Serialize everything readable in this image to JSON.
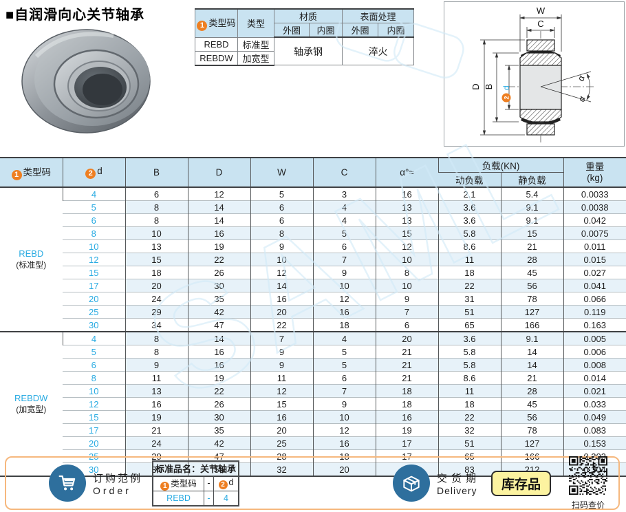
{
  "page": {
    "title": "■自润滑向心关节轴承"
  },
  "colors": {
    "accent_blue": "#29abe2",
    "orange": "#ee7f22",
    "header_bg": "#c9e3f1",
    "stripe_bg": "#e7f2f9",
    "steel_blue": "#2e6f9d",
    "badge_yellow": "#fcf3a0",
    "bottom_border": "#f6b87e"
  },
  "badges": {
    "one": "1",
    "two": "2"
  },
  "watermark": "SAML",
  "spec_table": {
    "col_type_code": "类型码",
    "col_type": "类型",
    "col_material": "材质",
    "col_surface": "表面处理",
    "outer": "外圈",
    "inner": "内圈",
    "rows": [
      {
        "code": "REBD",
        "type": "标准型"
      },
      {
        "code": "REBDW",
        "type": "加宽型"
      }
    ],
    "material_value": "轴承钢",
    "surface_value": "淬火"
  },
  "drawing": {
    "labels": {
      "w": "W",
      "c": "C",
      "d_outer": "D",
      "b": "B",
      "two": "2",
      "d_bore": "d",
      "alpha": "α"
    }
  },
  "main_table": {
    "headers": {
      "type_code": "类型码",
      "d": "d",
      "b": "B",
      "dd": "D",
      "w": "W",
      "c": "C",
      "alpha": "α°≈",
      "load": "负载(KN)",
      "dyn": "动负载",
      "stat": "静负载",
      "weight_l1": "重量",
      "weight_l2": "(kg)"
    },
    "groups": [
      {
        "code": "REBD",
        "name": "(标准型)",
        "rows": [
          [
            "4",
            "6",
            "12",
            "5",
            "3",
            "16",
            "2.1",
            "5.4",
            "0.0033"
          ],
          [
            "5",
            "8",
            "14",
            "6",
            "4",
            "13",
            "3.6",
            "9.1",
            "0.0038"
          ],
          [
            "6",
            "8",
            "14",
            "6",
            "4",
            "13",
            "3.6",
            "9.1",
            "0.042"
          ],
          [
            "8",
            "10",
            "16",
            "8",
            "5",
            "15",
            "5.8",
            "15",
            "0.0075"
          ],
          [
            "10",
            "13",
            "19",
            "9",
            "6",
            "12",
            "8.6",
            "21",
            "0.011"
          ],
          [
            "12",
            "15",
            "22",
            "10",
            "7",
            "10",
            "11",
            "28",
            "0.015"
          ],
          [
            "15",
            "18",
            "26",
            "12",
            "9",
            "8",
            "18",
            "45",
            "0.027"
          ],
          [
            "17",
            "20",
            "30",
            "14",
            "10",
            "10",
            "22",
            "56",
            "0.041"
          ],
          [
            "20",
            "24",
            "35",
            "16",
            "12",
            "9",
            "31",
            "78",
            "0.066"
          ],
          [
            "25",
            "29",
            "42",
            "20",
            "16",
            "7",
            "51",
            "127",
            "0.119"
          ],
          [
            "30",
            "34",
            "47",
            "22",
            "18",
            "6",
            "65",
            "166",
            "0.163"
          ]
        ]
      },
      {
        "code": "REBDW",
        "name": "(加宽型)",
        "rows": [
          [
            "4",
            "8",
            "14",
            "7",
            "4",
            "20",
            "3.6",
            "9.1",
            "0.005"
          ],
          [
            "5",
            "8",
            "16",
            "9",
            "5",
            "21",
            "5.8",
            "14",
            "0.006"
          ],
          [
            "6",
            "9",
            "16",
            "9",
            "5",
            "21",
            "5.8",
            "14",
            "0.008"
          ],
          [
            "8",
            "11",
            "19",
            "11",
            "6",
            "21",
            "8.6",
            "21",
            "0.014"
          ],
          [
            "10",
            "13",
            "22",
            "12",
            "7",
            "18",
            "11",
            "28",
            "0.021"
          ],
          [
            "12",
            "16",
            "26",
            "15",
            "9",
            "18",
            "18",
            "45",
            "0.033"
          ],
          [
            "15",
            "19",
            "30",
            "16",
            "10",
            "16",
            "22",
            "56",
            "0.049"
          ],
          [
            "17",
            "21",
            "35",
            "20",
            "12",
            "19",
            "32",
            "78",
            "0.083"
          ],
          [
            "20",
            "24",
            "42",
            "25",
            "16",
            "17",
            "51",
            "127",
            "0.153"
          ],
          [
            "25",
            "29",
            "47",
            "28",
            "18",
            "17",
            "65",
            "166",
            "0.203"
          ],
          [
            "30",
            "34",
            "55",
            "32",
            "20",
            "17",
            "83",
            "212",
            "0.304"
          ]
        ]
      }
    ]
  },
  "footer": {
    "order": {
      "label_cn": "订购范例",
      "label_en": "Order",
      "table_title": "标准品名：关节轴承",
      "col1": "类型码",
      "dash": "-",
      "col2": "d",
      "example_code": "REBD",
      "example_dash": "-",
      "example_d": "4"
    },
    "delivery": {
      "label_cn": "交货期",
      "label_en": "Delivery",
      "badge": "库存品"
    },
    "qr_caption": "扫码查价"
  }
}
